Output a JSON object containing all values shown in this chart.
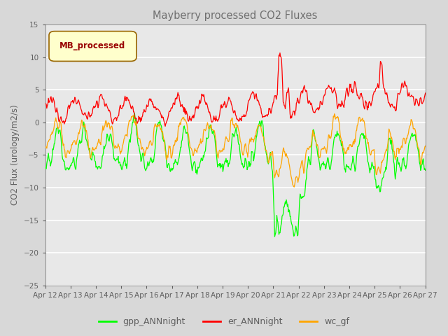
{
  "title": "Mayberry processed CO2 Fluxes",
  "ylabel": "CO2 Flux (urology/m2/s)",
  "ylim": [
    -25,
    15
  ],
  "yticks": [
    -25,
    -20,
    -15,
    -10,
    -5,
    0,
    5,
    10,
    15
  ],
  "xlabel_ticks": [
    "Apr 12",
    "Apr 13",
    "Apr 14",
    "Apr 15",
    "Apr 16",
    "Apr 17",
    "Apr 18",
    "Apr 19",
    "Apr 20",
    "Apr 21",
    "Apr 22",
    "Apr 23",
    "Apr 24",
    "Apr 25",
    "Apr 26",
    "Apr 27"
  ],
  "series_labels": [
    "gpp_ANNnight",
    "er_ANNnight",
    "wc_gf"
  ],
  "series_colors": [
    "#00FF00",
    "#FF0000",
    "#FFA500"
  ],
  "legend_label": "MB_processed",
  "legend_box_facecolor": "#FFFFCC",
  "legend_box_edgecolor": "#996600",
  "legend_text_color": "#990000",
  "background_color": "#D8D8D8",
  "plot_bg_color": "#E8E8E8",
  "title_color": "#707070",
  "axis_color": "#606060",
  "grid_color": "#FFFFFF",
  "line_width": 0.9
}
